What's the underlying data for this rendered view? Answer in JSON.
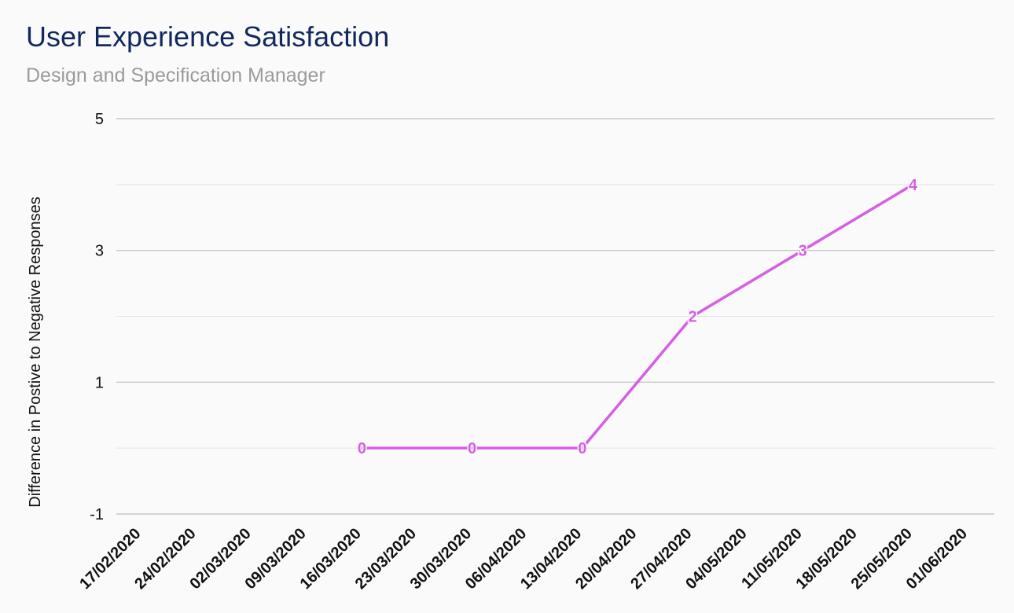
{
  "title": "User Experience Satisfaction",
  "subtitle": "Design and Specification Manager",
  "colors": {
    "series": "#d65ee3",
    "title": "#12295e",
    "subtitle": "#9b9b9b",
    "grid_major": "#c8c8c8",
    "grid_minor": "#e4e4e4"
  },
  "chart_data": {
    "type": "line",
    "title": "User Experience Satisfaction",
    "subtitle": "Design and Specification Manager",
    "xlabel": "",
    "ylabel": "Difference in Postive to Negative Responses",
    "ylim": [
      -1,
      5
    ],
    "yticks": [
      -1,
      1,
      3,
      5
    ],
    "grid": true,
    "legend": "none",
    "categories": [
      "17/02/2020",
      "24/02/2020",
      "02/03/2020",
      "09/03/2020",
      "16/03/2020",
      "23/03/2020",
      "30/03/2020",
      "06/04/2020",
      "13/04/2020",
      "20/04/2020",
      "27/04/2020",
      "04/05/2020",
      "11/05/2020",
      "18/05/2020",
      "25/05/2020",
      "01/06/2020"
    ],
    "series": [
      {
        "points": [
          {
            "x": "16/03/2020",
            "y": 0
          },
          {
            "x": "30/03/2020",
            "y": 0
          },
          {
            "x": "13/04/2020",
            "y": 0
          },
          {
            "x": "27/04/2020",
            "y": 2
          },
          {
            "x": "11/05/2020",
            "y": 3
          },
          {
            "x": "25/05/2020",
            "y": 4
          }
        ]
      }
    ]
  }
}
